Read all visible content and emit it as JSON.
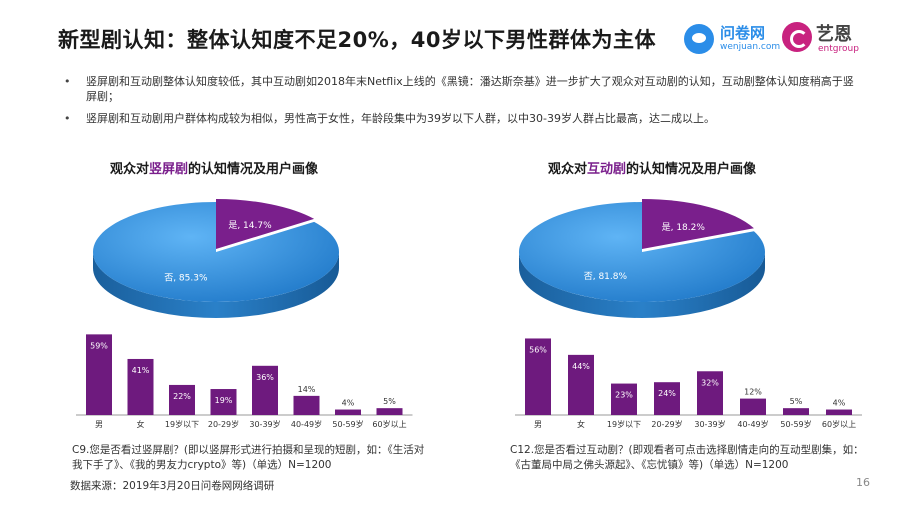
{
  "header": {
    "title": "新型剧认知：整体认知度不足20%，40岁以下男性群体为主体",
    "logo_wenjuan_text": "问卷网",
    "logo_wenjuan_sub": "wenjuan.com",
    "logo_ent_text": "艺恩",
    "logo_ent_sub": "entgroup"
  },
  "bullets": [
    "竖屏剧和互动剧整体认知度较低，其中互动剧如2018年末Netflix上线的《黑镜：潘达斯奈基》进一步扩大了观众对互动剧的认知，互动剧整体认知度稍高于竖屏剧；",
    "竖屏剧和互动剧用户群体构成较为相似，男性高于女性，年龄段集中为39岁以下人群，以中30-39岁人群占比最高，达二成以上。"
  ],
  "charts": {
    "left": {
      "title_prefix": "观众对",
      "title_highlight": "竖屏剧",
      "title_suffix": "的认知情况及用户画像",
      "note": "C9.您是否看过竖屏剧？(即以竖屏形式进行拍摄和呈现的短剧，如：《生活对我下手了》、《我的男友力crypto》等)（单选）N=1200"
    },
    "right": {
      "title_prefix": "观众对",
      "title_highlight": "互动剧",
      "title_suffix": "的认知情况及用户画像",
      "note": "C12.您是否看过互动剧？(即观看者可点击选择剧情走向的互动型剧集，如：《古董局中局之佛头源起》、《忘忧镇》等)（单选）N=1200"
    }
  },
  "chart_data": [
    {
      "type": "pie",
      "labels": [
        "是",
        "否"
      ],
      "values": [
        14.7,
        85.3
      ],
      "value_labels": [
        "是, 14.7%",
        "否, 85.3%"
      ],
      "colors": [
        "#7a1f8c",
        "#2f8fe0"
      ]
    },
    {
      "type": "bar",
      "categories": [
        "男",
        "女",
        "19岁以下",
        "20-29岁",
        "30-39岁",
        "40-49岁",
        "50-59岁",
        "60岁以上"
      ],
      "values": [
        59,
        41,
        22,
        19,
        36,
        14,
        4,
        5
      ],
      "value_labels": [
        "59%",
        "41%",
        "22%",
        "19%",
        "36%",
        "14%",
        "4%",
        "5%"
      ],
      "ylim": [
        0,
        60
      ],
      "color": "#6e1a7e"
    },
    {
      "type": "pie",
      "labels": [
        "是",
        "否"
      ],
      "values": [
        18.2,
        81.8
      ],
      "value_labels": [
        "是, 18.2%",
        "否, 81.8%"
      ],
      "colors": [
        "#7a1f8c",
        "#2f8fe0"
      ]
    },
    {
      "type": "bar",
      "categories": [
        "男",
        "女",
        "19岁以下",
        "20-29岁",
        "30-39岁",
        "40-49岁",
        "50-59岁",
        "60岁以上"
      ],
      "values": [
        56,
        44,
        23,
        24,
        32,
        12,
        5,
        4
      ],
      "value_labels": [
        "56%",
        "44%",
        "23%",
        "24%",
        "32%",
        "12%",
        "5%",
        "4%"
      ],
      "ylim": [
        0,
        60
      ],
      "color": "#6e1a7e"
    }
  ],
  "footer": {
    "source": "数据来源：2019年3月20日问卷网网络调研",
    "page_number": "16"
  }
}
